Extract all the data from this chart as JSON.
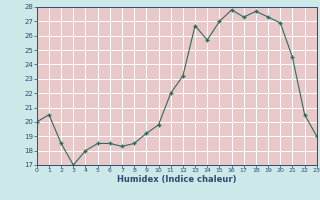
{
  "x": [
    0,
    1,
    2,
    3,
    4,
    5,
    6,
    7,
    8,
    9,
    10,
    11,
    12,
    13,
    14,
    15,
    16,
    17,
    18,
    19,
    20,
    21,
    22,
    23
  ],
  "y": [
    20.0,
    20.5,
    18.5,
    17.0,
    18.0,
    18.5,
    18.5,
    18.3,
    18.5,
    19.2,
    19.8,
    22.0,
    23.2,
    26.7,
    25.7,
    27.0,
    27.8,
    27.3,
    27.7,
    27.3,
    26.9,
    24.5,
    20.5,
    19.0
  ],
  "xlabel": "Humidex (Indice chaleur)",
  "ylim": [
    17,
    28
  ],
  "xlim": [
    0,
    23
  ],
  "yticks": [
    17,
    18,
    19,
    20,
    21,
    22,
    23,
    24,
    25,
    26,
    27,
    28
  ],
  "xticks": [
    0,
    1,
    2,
    3,
    4,
    5,
    6,
    7,
    8,
    9,
    10,
    11,
    12,
    13,
    14,
    15,
    16,
    17,
    18,
    19,
    20,
    21,
    22,
    23
  ],
  "line_color": "#2e6b5e",
  "marker_color": "#2e6b5e",
  "plot_bg": "#cde8e8",
  "grid_bg": "#e8c8c8",
  "fig_bg": "#cde8e8",
  "grid_color": "#ffffff",
  "tick_color": "#2e4a6e",
  "xlabel_color": "#2e4a6e"
}
